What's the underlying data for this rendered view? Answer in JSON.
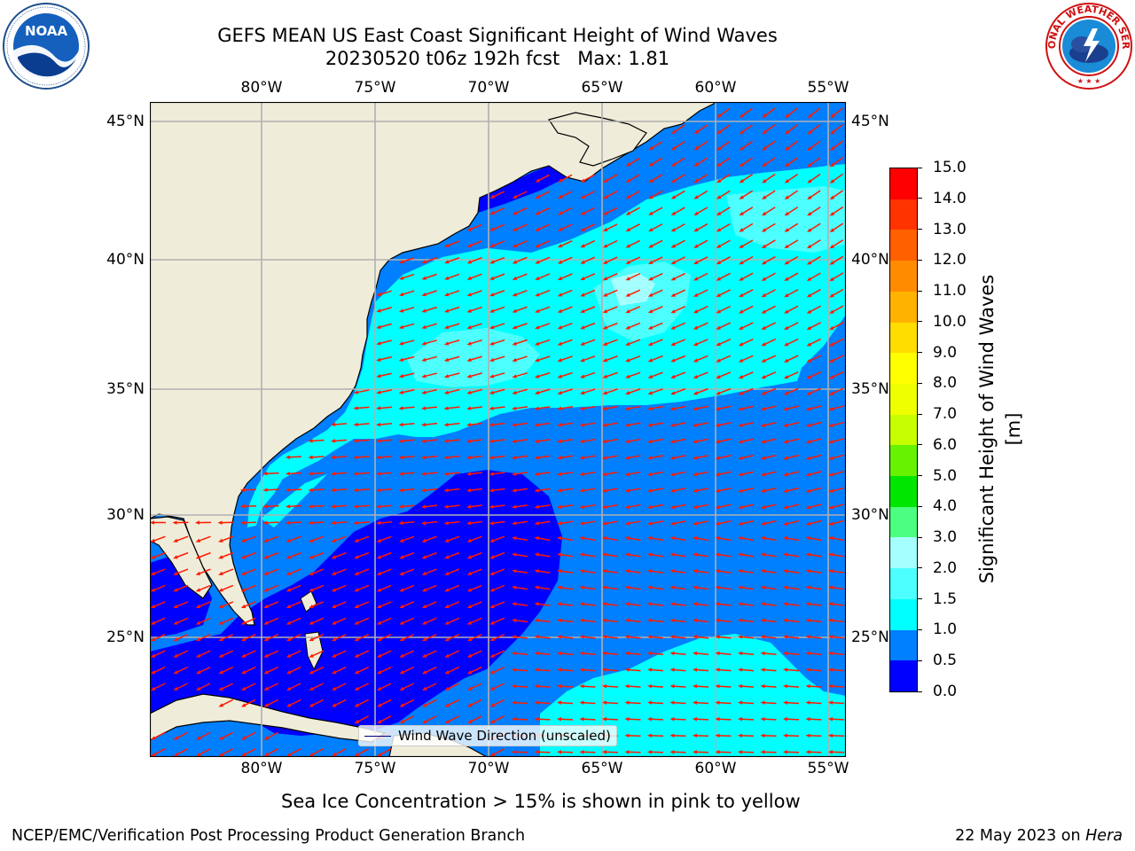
{
  "title": {
    "line1": "GEFS MEAN US East Coast Significant Height of Wind Waves",
    "line2": "20230520 t06z 192h fcst   Max: 1.81"
  },
  "logos": {
    "left": {
      "icon": "noaa-logo",
      "text": "NOAA",
      "ring_text": "NATIONAL OCEANIC AND ATMOSPHERIC ADMINISTRATION · U.S. DEPARTMENT OF COMMERCE"
    },
    "right": {
      "icon": "nws-logo",
      "ring_text": "NATIONAL WEATHER SERVICE"
    }
  },
  "map": {
    "lon_labels": [
      "80°W",
      "75°W",
      "70°W",
      "65°W",
      "60°W",
      "55°W"
    ],
    "lat_labels": [
      "45°N",
      "40°N",
      "35°N",
      "30°N",
      "25°N"
    ],
    "lon_range": [
      -85,
      -54.2
    ],
    "lat_range": [
      20.3,
      45.8
    ],
    "gridlines": true,
    "colors": {
      "land": "#efedda",
      "coastline": "#000000",
      "grid": "#b0b0b0",
      "arrow": "#ff1a00"
    },
    "legend": {
      "label": "Wind Wave Direction (unscaled)",
      "line_color": "#000080",
      "placement": "lower center"
    }
  },
  "colorbar": {
    "label": "Significant Height of Wind Waves [m]",
    "ticks": [
      "0.0",
      "0.5",
      "1.0",
      "1.5",
      "2.0",
      "3.0",
      "4.0",
      "5.0",
      "6.0",
      "7.0",
      "8.0",
      "9.0",
      "10.0",
      "11.0",
      "12.0",
      "13.0",
      "14.0",
      "15.0"
    ],
    "colors": [
      "#0000ff",
      "#007fff",
      "#00ffff",
      "#4dffff",
      "#a6ffff",
      "#4dff80",
      "#00e600",
      "#66f200",
      "#c8ff00",
      "#eeff00",
      "#ffff00",
      "#ffdd00",
      "#ffb300",
      "#ff8c00",
      "#ff6000",
      "#ff3300",
      "#ff0000"
    ]
  },
  "subtitle": "Sea Ice Concentration > 15% is shown in pink to yellow",
  "footer": {
    "left": "NCEP/EMC/Verification Post Processing Product Generation Branch",
    "right_date": "22 May 2023 on ",
    "right_host": "Hera"
  }
}
